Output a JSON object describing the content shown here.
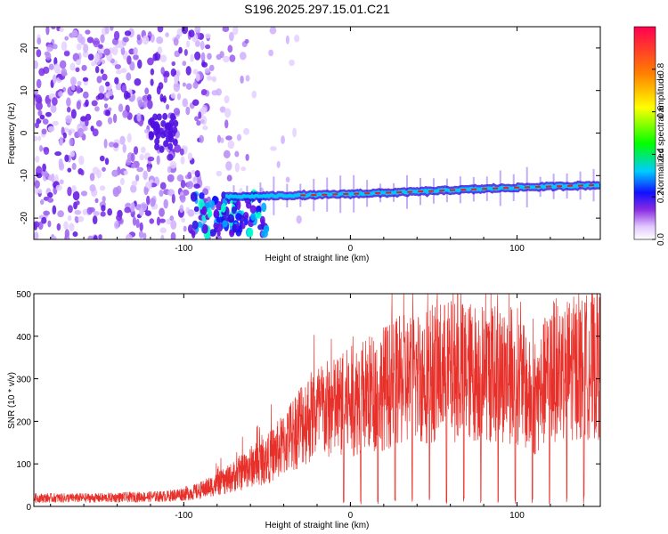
{
  "title": "S196.2025.297.15.01.C21",
  "chart_data": [
    {
      "type": "heatmap",
      "name": "spectrogram",
      "xlabel": "Height of straight line (km)",
      "ylabel": "Frequency (Hz)",
      "xlim": [
        -190,
        150
      ],
      "ylim": [
        -25,
        25
      ],
      "x_ticks": [
        -100,
        0,
        100
      ],
      "y_ticks": [
        -20,
        -10,
        0,
        10,
        20
      ],
      "signal_line": {
        "x": [
          -75,
          -50,
          -25,
          0,
          25,
          50,
          75,
          100,
          125,
          150
        ],
        "frequency": [
          -15.0,
          -14.8,
          -14.6,
          -14.3,
          -14.0,
          -13.6,
          -13.2,
          -12.8,
          -12.5,
          -12.2
        ]
      },
      "colorbar": {
        "label": "Normalized spectral amplitude",
        "ticks": [
          0.0,
          0.2,
          0.4,
          0.6,
          0.8
        ],
        "range": [
          0,
          1
        ]
      }
    },
    {
      "type": "line",
      "name": "snr",
      "xlabel": "Height of straight line (km)",
      "ylabel": "SNR (10 * v/v)",
      "xlim": [
        -190,
        150
      ],
      "ylim": [
        0,
        500
      ],
      "x_ticks": [
        -100,
        0,
        100
      ],
      "y_ticks": [
        0,
        100,
        200,
        300,
        400,
        500
      ],
      "color": "#e8302a",
      "envelope": {
        "x": [
          -190,
          -150,
          -110,
          -90,
          -75,
          -60,
          -50,
          -40,
          -30,
          -20,
          -10,
          0,
          10,
          20,
          30,
          40,
          50,
          60,
          80,
          100,
          110,
          120,
          130,
          140,
          150
        ],
        "y": [
          25,
          25,
          30,
          45,
          70,
          110,
          130,
          170,
          230,
          260,
          270,
          290,
          310,
          330,
          345,
          360,
          370,
          375,
          370,
          365,
          280,
          375,
          380,
          385,
          390
        ]
      }
    }
  ]
}
